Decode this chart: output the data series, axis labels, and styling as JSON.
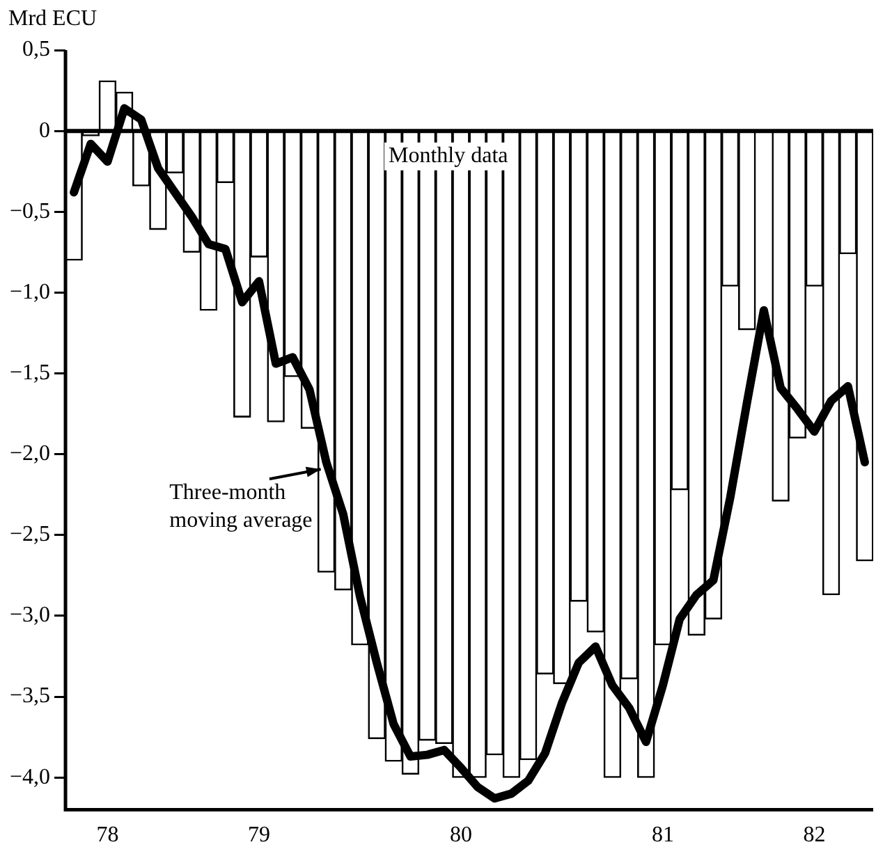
{
  "chart_data": {
    "type": "bar",
    "ylabel": "Mrd ECU",
    "categories": [
      null,
      null,
      "78",
      null,
      null,
      null,
      null,
      null,
      null,
      null,
      null,
      "79",
      null,
      null,
      null,
      null,
      null,
      null,
      null,
      null,
      null,
      null,
      null,
      "80",
      null,
      null,
      null,
      null,
      null,
      null,
      null,
      null,
      null,
      null,
      null,
      "81",
      null,
      null,
      null,
      null,
      null,
      null,
      null,
      null,
      "82",
      null,
      null,
      null
    ],
    "series": [
      {
        "name": "Monthly data",
        "color": "#ffffff",
        "values": [
          -0.8,
          -0.03,
          0.31,
          0.24,
          -0.34,
          -0.61,
          -0.26,
          -0.75,
          -1.11,
          -0.32,
          -1.77,
          -0.78,
          -1.8,
          -1.52,
          -1.84,
          -2.73,
          -2.84,
          -3.18,
          -3.76,
          -3.9,
          -3.98,
          -3.77,
          -3.79,
          -4.0,
          -4.0,
          -3.86,
          -4.0,
          -3.89,
          -3.36,
          -3.42,
          -2.91,
          -3.1,
          -4.0,
          -3.39,
          -4.0,
          -3.18,
          -2.22,
          -3.12,
          -3.02,
          -0.96,
          -1.23,
          null,
          -2.29,
          -1.9,
          -0.96,
          -2.87,
          -0.76,
          -2.66
        ]
      },
      {
        "type": "line",
        "name": "Three-month moving average",
        "color": "#000000",
        "values": [
          -0.38,
          -0.08,
          -0.19,
          0.14,
          0.07,
          -0.23,
          -0.38,
          -0.53,
          -0.7,
          -0.73,
          -1.06,
          -0.93,
          -1.44,
          -1.4,
          -1.6,
          -2.05,
          -2.37,
          -2.88,
          -3.29,
          -3.67,
          -3.87,
          -3.86,
          -3.83,
          -3.94,
          -4.06,
          -4.13,
          -4.1,
          -4.02,
          -3.85,
          -3.54,
          -3.29,
          -3.19,
          -3.43,
          -3.57,
          -3.78,
          -3.43,
          -3.02,
          -2.87,
          -2.78,
          -2.27,
          -1.68,
          -1.11,
          -1.59,
          -1.72,
          -1.86,
          -1.67,
          -1.58,
          -2.05
        ]
      }
    ],
    "ylim": [
      -4.2,
      0.5
    ],
    "yticks": [
      {
        "value": 0.5,
        "label": "0,5"
      },
      0,
      {
        "value": -0.5,
        "label": "−0,5"
      },
      {
        "value": -1,
        "label": "−1,0"
      },
      {
        "value": -1.5,
        "label": "−1,5"
      },
      {
        "value": -2,
        "label": "−2,0"
      },
      {
        "value": -2.5,
        "label": "−2,5"
      },
      {
        "value": -3,
        "label": "−3,0"
      },
      {
        "value": -3.5,
        "label": "−3,5"
      },
      {
        "value": -4,
        "label": "−4,0"
      }
    ],
    "ref_lines": [
      {
        "axis": "y",
        "value": 0
      }
    ],
    "grid": false,
    "marker": "none",
    "line_style": "solid"
  }
}
